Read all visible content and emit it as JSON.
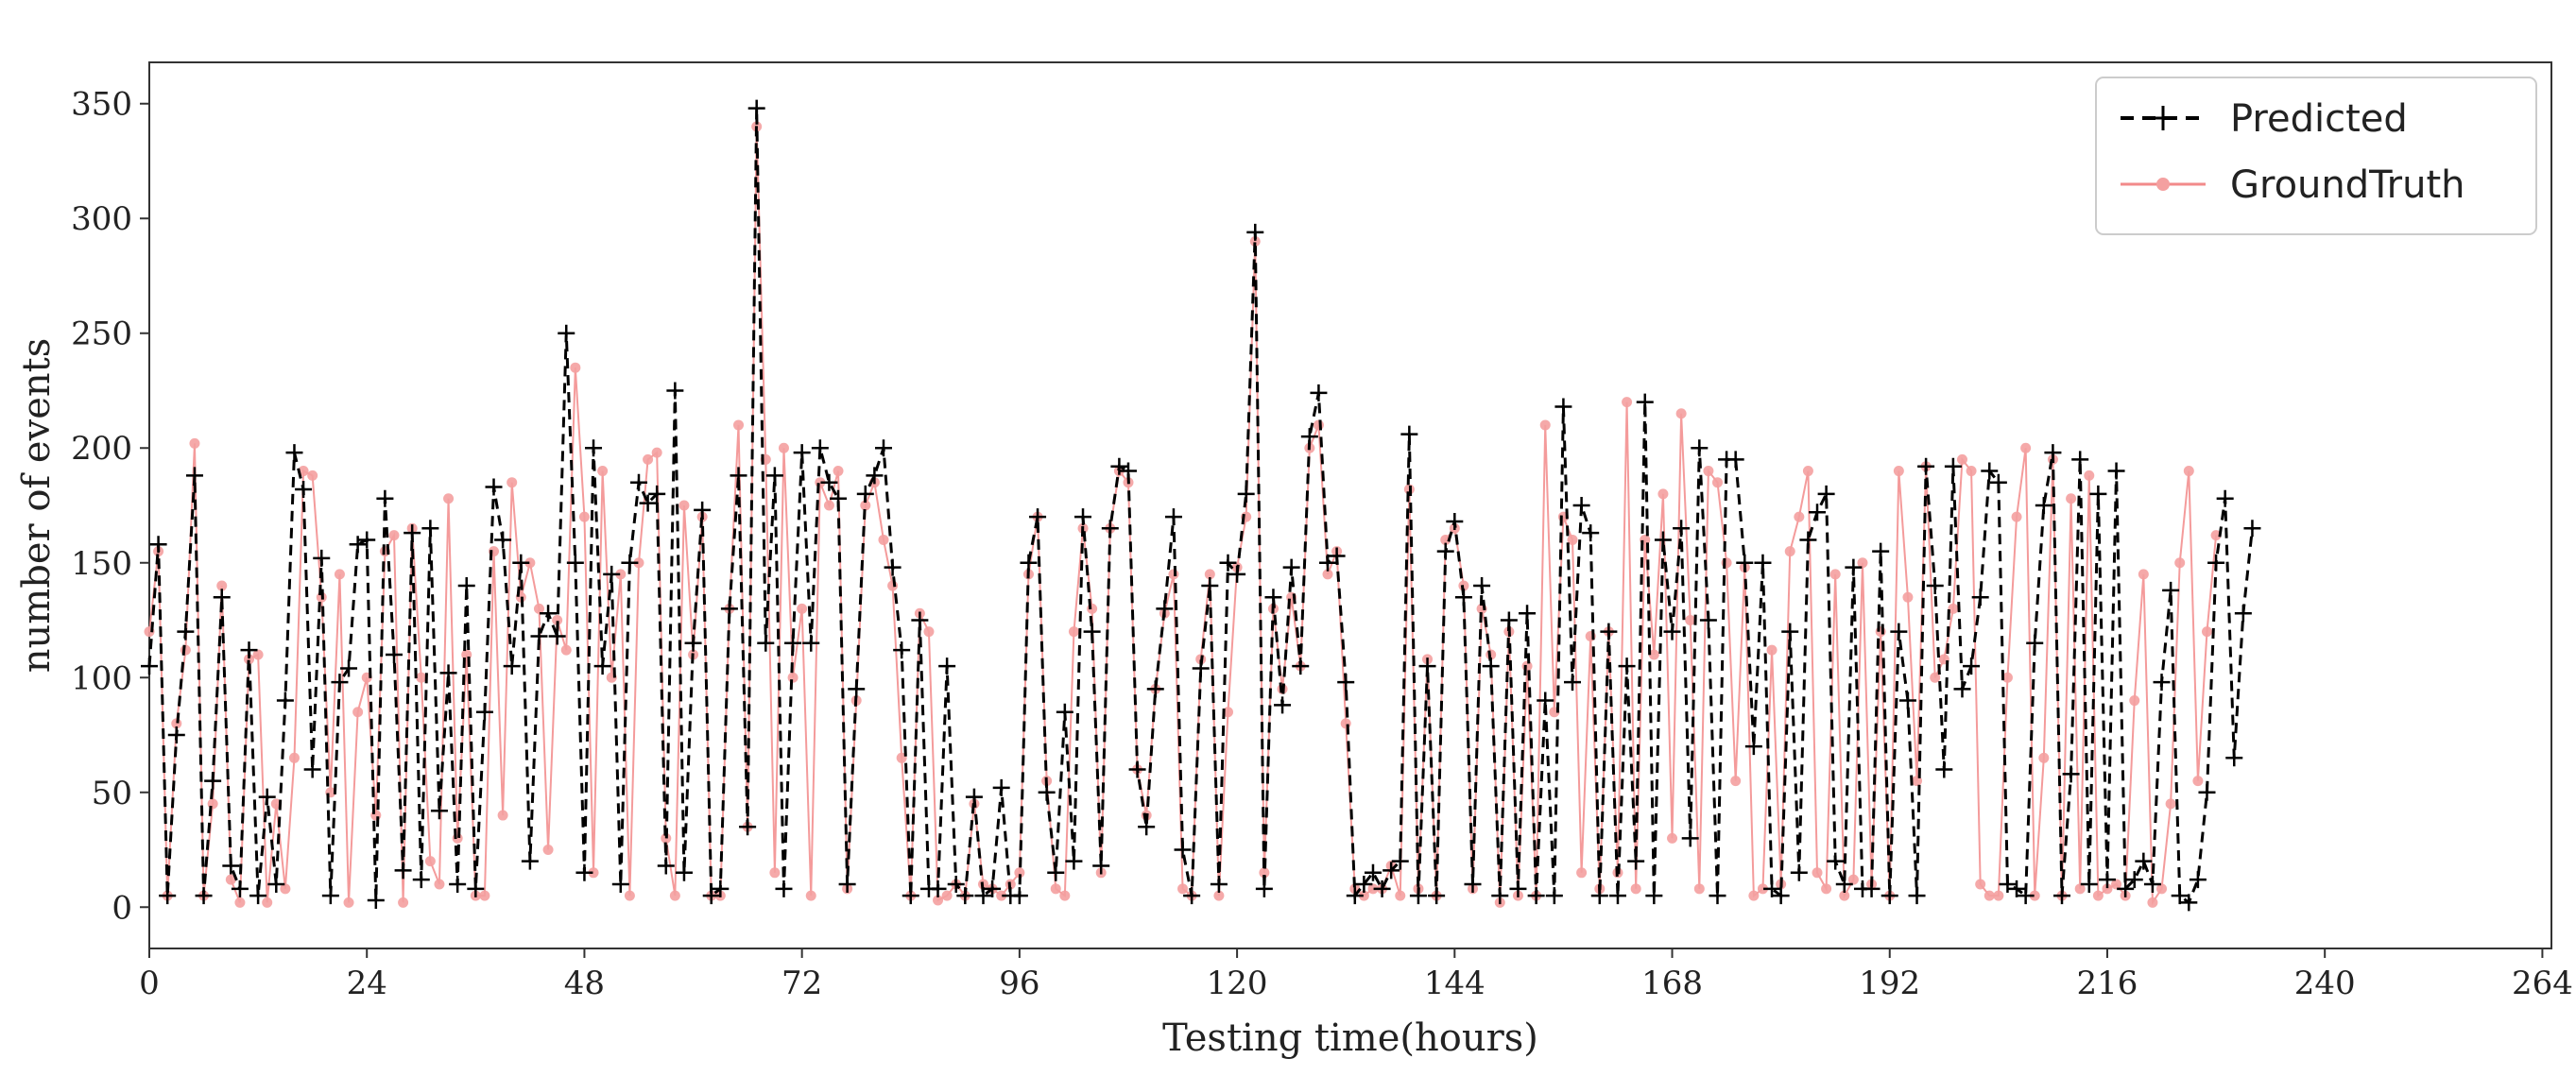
{
  "chart_data": {
    "type": "line",
    "xlabel": "Testing time(hours)",
    "ylabel": "number of events",
    "xlim": [
      0,
      265
    ],
    "ylim": [
      -18,
      368
    ],
    "x_ticks": [
      0,
      24,
      48,
      72,
      96,
      120,
      144,
      168,
      192,
      216,
      240,
      264
    ],
    "y_ticks": [
      0,
      50,
      100,
      150,
      200,
      250,
      300,
      350
    ],
    "grid": false,
    "legend_position": "top-right",
    "series": [
      {
        "name": "Predicted",
        "color": "#000000",
        "style": "dashed",
        "marker": "plus",
        "values": [
          105,
          158,
          5,
          75,
          120,
          188,
          5,
          55,
          135,
          18,
          8,
          112,
          5,
          48,
          10,
          90,
          198,
          182,
          60,
          152,
          5,
          98,
          104,
          158,
          160,
          3,
          178,
          110,
          16,
          163,
          12,
          165,
          42,
          102,
          10,
          140,
          8,
          85,
          183,
          160,
          105,
          150,
          20,
          118,
          128,
          118,
          250,
          150,
          15,
          200,
          105,
          145,
          10,
          150,
          185,
          176,
          180,
          18,
          225,
          15,
          115,
          173,
          5,
          8,
          130,
          188,
          35,
          348,
          115,
          188,
          8,
          115,
          198,
          115,
          200,
          185,
          178,
          10,
          95,
          180,
          188,
          200,
          148,
          112,
          5,
          125,
          8,
          8,
          105,
          10,
          5,
          48,
          5,
          8,
          52,
          5,
          5,
          150,
          170,
          50,
          15,
          85,
          20,
          170,
          120,
          18,
          165,
          192,
          190,
          60,
          35,
          95,
          130,
          170,
          25,
          5,
          104,
          140,
          10,
          150,
          145,
          180,
          294,
          8,
          135,
          88,
          148,
          105,
          205,
          224,
          150,
          153,
          98,
          5,
          10,
          15,
          8,
          16,
          20,
          206,
          5,
          105,
          5,
          155,
          168,
          135,
          10,
          140,
          105,
          5,
          125,
          8,
          128,
          5,
          90,
          5,
          218,
          98,
          175,
          163,
          5,
          120,
          5,
          105,
          20,
          220,
          5,
          160,
          120,
          165,
          30,
          200,
          125,
          5,
          195,
          195,
          150,
          70,
          150,
          8,
          5,
          120,
          15,
          160,
          172,
          180,
          20,
          10,
          148,
          8,
          8,
          155,
          5,
          120,
          90,
          5,
          192,
          140,
          60,
          192,
          95,
          105,
          135,
          190,
          185,
          10,
          8,
          5,
          115,
          175,
          198,
          5,
          58,
          195,
          10,
          180,
          12,
          190,
          8,
          12,
          20,
          10,
          98,
          138,
          5,
          2,
          12,
          50,
          150,
          178,
          65,
          128,
          165
        ]
      },
      {
        "name": "GroundTruth",
        "color": "#f28a8a",
        "style": "solid",
        "marker": "star",
        "values": [
          120,
          155,
          5,
          80,
          112,
          202,
          5,
          45,
          140,
          12,
          2,
          108,
          110,
          2,
          45,
          8,
          65,
          190,
          188,
          135,
          50,
          145,
          2,
          85,
          100,
          40,
          155,
          162,
          2,
          165,
          100,
          20,
          10,
          178,
          30,
          110,
          5,
          5,
          155,
          40,
          185,
          135,
          150,
          130,
          25,
          125,
          112,
          235,
          170,
          15,
          190,
          100,
          145,
          5,
          150,
          195,
          198,
          30,
          5,
          175,
          110,
          170,
          5,
          5,
          130,
          210,
          35,
          340,
          195,
          15,
          200,
          100,
          130,
          5,
          185,
          175,
          190,
          8,
          90,
          175,
          185,
          160,
          140,
          65,
          5,
          128,
          120,
          3,
          5,
          10,
          5,
          45,
          10,
          8,
          5,
          10,
          15,
          145,
          170,
          55,
          8,
          5,
          120,
          165,
          130,
          15,
          165,
          190,
          185,
          60,
          40,
          95,
          128,
          145,
          8,
          5,
          108,
          145,
          5,
          85,
          148,
          170,
          290,
          15,
          130,
          95,
          135,
          105,
          200,
          210,
          145,
          155,
          80,
          8,
          5,
          8,
          8,
          18,
          5,
          182,
          8,
          108,
          5,
          160,
          165,
          140,
          8,
          130,
          110,
          2,
          120,
          5,
          105,
          5,
          210,
          85,
          170,
          160,
          15,
          118,
          8,
          120,
          15,
          220,
          8,
          160,
          110,
          180,
          30,
          215,
          125,
          8,
          190,
          185,
          150,
          55,
          148,
          5,
          8,
          112,
          10,
          155,
          170,
          190,
          15,
          8,
          145,
          5,
          12,
          150,
          10,
          120,
          5,
          190,
          135,
          55,
          192,
          100,
          108,
          130,
          195,
          190,
          10,
          5,
          5,
          100,
          170,
          200,
          5,
          65,
          195,
          5,
          178,
          8,
          188,
          5,
          8,
          10,
          5,
          90,
          145,
          2,
          8,
          45,
          150,
          190,
          55,
          120,
          162
        ]
      }
    ]
  }
}
